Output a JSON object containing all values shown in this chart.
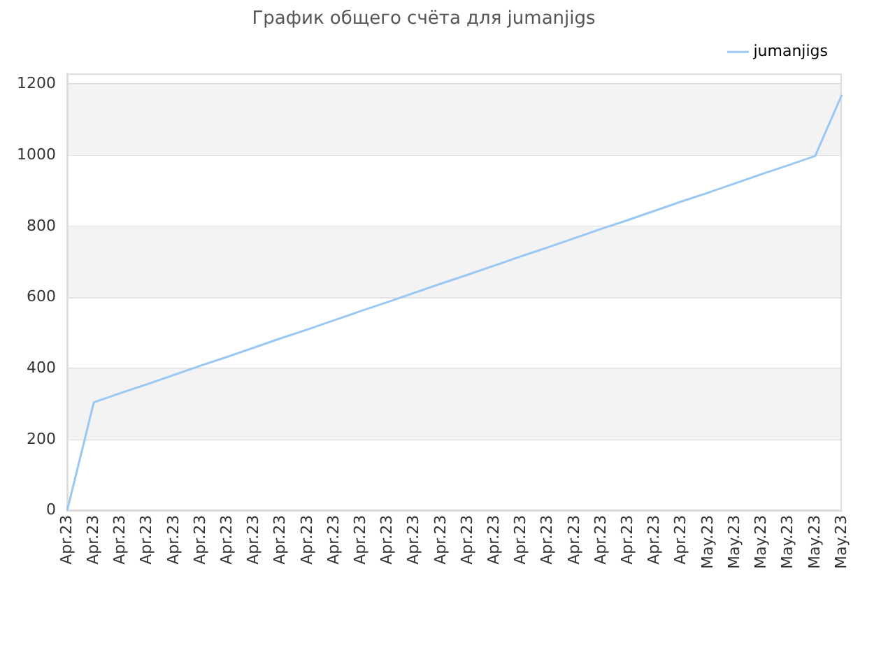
{
  "chart_data": {
    "type": "line",
    "title": "График общего счёта для jumanjigs",
    "categories": [
      "Apr.23",
      "Apr.23",
      "Apr.23",
      "Apr.23",
      "Apr.23",
      "Apr.23",
      "Apr.23",
      "Apr.23",
      "Apr.23",
      "Apr.23",
      "Apr.23",
      "Apr.23",
      "Apr.23",
      "Apr.23",
      "Apr.23",
      "Apr.23",
      "Apr.23",
      "Apr.23",
      "Apr.23",
      "Apr.23",
      "Apr.23",
      "Apr.23",
      "Apr.23",
      "Apr.23",
      "May.23",
      "May.23",
      "May.23",
      "May.23",
      "May.23",
      "May.23"
    ],
    "series": [
      {
        "name": "jumanjigs",
        "color": "#99c8f2",
        "values": [
          0,
          305,
          331,
          356,
          382,
          408,
          433,
          459,
          485,
          510,
          536,
          562,
          587,
          613,
          639,
          664,
          690,
          716,
          741,
          767,
          793,
          818,
          844,
          870,
          895,
          921,
          947,
          972,
          998,
          1170
        ]
      }
    ],
    "ylim": [
      0,
      1230
    ],
    "yticks": [
      0,
      200,
      400,
      600,
      800,
      1000,
      1200
    ],
    "grid": "y",
    "legend": "top right",
    "marker": "none",
    "line_style": "solid"
  }
}
